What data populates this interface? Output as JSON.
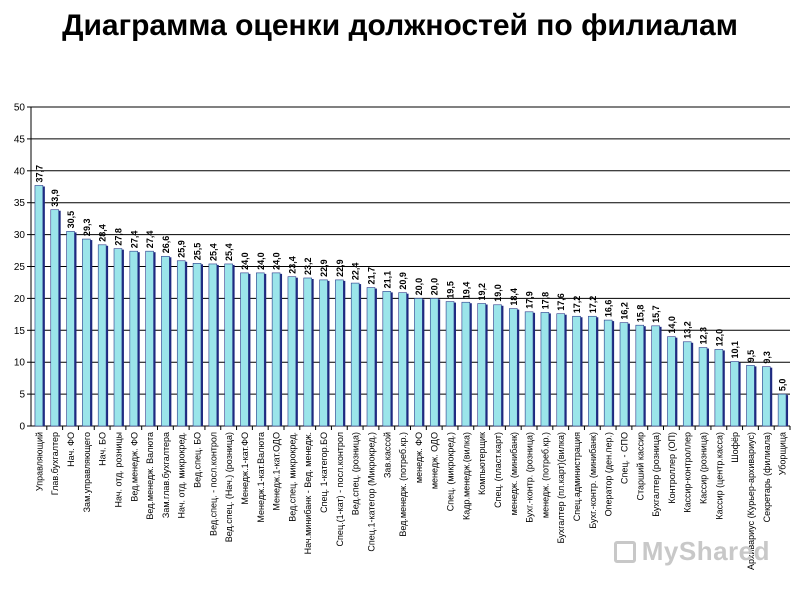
{
  "page": {
    "title": "Диаграмма оценки должностей по филиалам"
  },
  "watermark": {
    "text": "MyShared"
  },
  "chart_data": {
    "type": "bar",
    "title": "Диаграмма оценки должностей по филиалам",
    "xlabel": "",
    "ylabel": "",
    "ylim": [
      0,
      50
    ],
    "yticks": [
      0,
      5,
      10,
      15,
      20,
      25,
      30,
      35,
      40,
      45,
      50
    ],
    "grid": true,
    "legend": "none",
    "bar_color": "#9be5ea",
    "bar_shadow_color": "#1e2a80",
    "categories": [
      "Управляющий",
      "Глав.бухгалтер",
      "Нач. ФО",
      "Зам.управляющего",
      "Нач. БО",
      "Нач. отд. розницы",
      "Вед.менедж. ФО",
      "Вед.менедж. Валюта",
      "Зам.глав.бухгалтера",
      "Нач. отд. микрокред.",
      "Вед.спец. БО",
      "Вед.спец. - посл.контрол",
      "Вед.спец. (Нач.) (розница)",
      "Менедж.1-кат.ФО",
      "Менедж.1-кат.Валюта",
      "Менедж.1-кат.ОДО",
      "Вед.спец. микрокред.",
      "Нач.минибанк - Вед. менедж.",
      "Спец. 1-категор.БО",
      "Спец.(1-кат) - посл.контрол",
      "Вед.спец. (розница)",
      "Спец.1-категор (Микрокред.)",
      "Зав.кассой",
      "Вед.менедж. (потреб.кр.)",
      "менедж. ФО",
      "менедж. ОДО",
      "Спец. (микрокред.)",
      "Кадр.менедж.(вилка)",
      "Компьютерщик",
      "Спец. (пласт.карт)",
      "менедж. (минибанк)",
      "Бухг.-контр. (розница)",
      "менедж. (потреб.кр.)",
      "Бухгалтер (пл.карт)(вилка)",
      "Спец.администрация",
      "Бухг.-контр. (минибанк)",
      "Оператор (ден.пер.)",
      "Спец. - СПО",
      "Старший кассир",
      "Бухгалтер (розница)",
      "Контроллер (ОП)",
      "Кассир-контроллер",
      "Кассир (розница)",
      "Кассир (центр.касса)",
      "Шофёр",
      "Архивариус (Курьер-архивариус)",
      "Секретарь (филиала)",
      "Уборщица"
    ],
    "values": [
      37.7,
      33.9,
      30.5,
      29.3,
      28.4,
      27.8,
      27.4,
      27.4,
      26.6,
      25.9,
      25.5,
      25.4,
      25.4,
      24.0,
      24.0,
      24.0,
      23.4,
      23.2,
      22.9,
      22.9,
      22.4,
      21.7,
      21.1,
      20.9,
      20.0,
      20.0,
      19.5,
      19.4,
      19.2,
      19.0,
      18.4,
      17.9,
      17.8,
      17.6,
      17.2,
      17.2,
      16.6,
      16.2,
      15.8,
      15.7,
      14.0,
      13.2,
      12.3,
      12.0,
      10.1,
      9.5,
      9.3,
      5.0
    ],
    "data_labels": [
      "37,7",
      "33,9",
      "30,5",
      "29,3",
      "28,4",
      "27,8",
      "27,4",
      "27,4",
      "26,6",
      "25,9",
      "25,5",
      "25,4",
      "25,4",
      "24,0",
      "24,0",
      "24,0",
      "23,4",
      "23,2",
      "22,9",
      "22,9",
      "22,4",
      "21,7",
      "21,1",
      "20,9",
      "20,0",
      "20,0",
      "19,5",
      "19,4",
      "19,2",
      "19,0",
      "18,4",
      "17,9",
      "17,8",
      "17,6",
      "17,2",
      "17,2",
      "16,6",
      "16,2",
      "15,8",
      "15,7",
      "14,0",
      "13,2",
      "12,3",
      "12,0",
      "10,1",
      "9,5",
      "9,3",
      "5,0"
    ]
  }
}
